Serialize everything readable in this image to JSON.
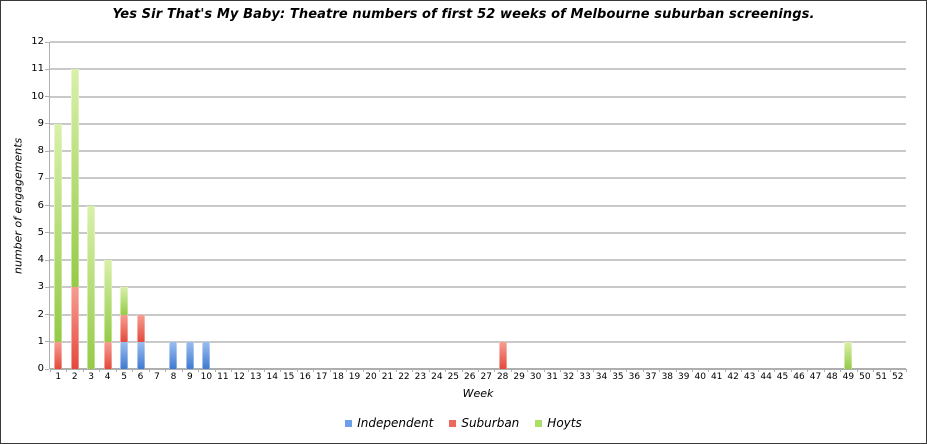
{
  "title": "Yes Sir That's My Baby: Theatre numbers of first 52 weeks of Melbourne suburban screenings.",
  "chart_data": {
    "type": "bar",
    "stacked": true,
    "title": "Yes Sir That's My Baby: Theatre numbers of first 52 weeks of Melbourne suburban screenings.",
    "xlabel": "Week",
    "ylabel": "number of engagements",
    "ylim": [
      0,
      12
    ],
    "ytick_step": 1,
    "yticks": [
      0,
      1,
      2,
      3,
      4,
      5,
      6,
      7,
      8,
      9,
      10,
      11,
      12
    ],
    "grid": true,
    "legend_position": "bottom",
    "categories": [
      1,
      2,
      3,
      4,
      5,
      6,
      7,
      8,
      9,
      10,
      11,
      12,
      13,
      14,
      15,
      16,
      17,
      18,
      19,
      20,
      21,
      22,
      23,
      24,
      25,
      26,
      27,
      28,
      29,
      30,
      31,
      32,
      33,
      34,
      35,
      36,
      37,
      38,
      39,
      40,
      41,
      42,
      43,
      44,
      45,
      46,
      47,
      48,
      49,
      50,
      51,
      52
    ],
    "series": [
      {
        "name": "Independent",
        "legend_color": "#6d9eeb",
        "fill_top": "#9bbdf0",
        "fill_bottom": "#3f7ad0",
        "values": [
          0,
          0,
          0,
          0,
          1,
          1,
          0,
          1,
          1,
          1,
          0,
          0,
          0,
          0,
          0,
          0,
          0,
          0,
          0,
          0,
          0,
          0,
          0,
          0,
          0,
          0,
          0,
          0,
          0,
          0,
          0,
          0,
          0,
          0,
          0,
          0,
          0,
          0,
          0,
          0,
          0,
          0,
          0,
          0,
          0,
          0,
          0,
          0,
          0,
          0,
          0,
          0
        ]
      },
      {
        "name": "Suburban",
        "legend_color": "#ee685d",
        "fill_top": "#f79d92",
        "fill_bottom": "#e4493c",
        "values": [
          1,
          3,
          0,
          1,
          1,
          1,
          0,
          0,
          0,
          0,
          0,
          0,
          0,
          0,
          0,
          0,
          0,
          0,
          0,
          0,
          0,
          0,
          0,
          0,
          0,
          0,
          0,
          1,
          0,
          0,
          0,
          0,
          0,
          0,
          0,
          0,
          0,
          0,
          0,
          0,
          0,
          0,
          0,
          0,
          0,
          0,
          0,
          0,
          0,
          0,
          0,
          0
        ]
      },
      {
        "name": "Hoyts",
        "legend_color": "#abdf68",
        "fill_top": "#d9f0a9",
        "fill_bottom": "#94cb47",
        "values": [
          8,
          8,
          6,
          3,
          1,
          0,
          0,
          0,
          0,
          0,
          0,
          0,
          0,
          0,
          0,
          0,
          0,
          0,
          0,
          0,
          0,
          0,
          0,
          0,
          0,
          0,
          0,
          0,
          0,
          0,
          0,
          0,
          0,
          0,
          0,
          0,
          0,
          0,
          0,
          0,
          0,
          0,
          0,
          0,
          0,
          0,
          0,
          0,
          1,
          0,
          0,
          0
        ]
      }
    ],
    "colors": {
      "gridline": "#c9c9c9",
      "axis": "#aeaeae",
      "text": "#000000"
    }
  }
}
